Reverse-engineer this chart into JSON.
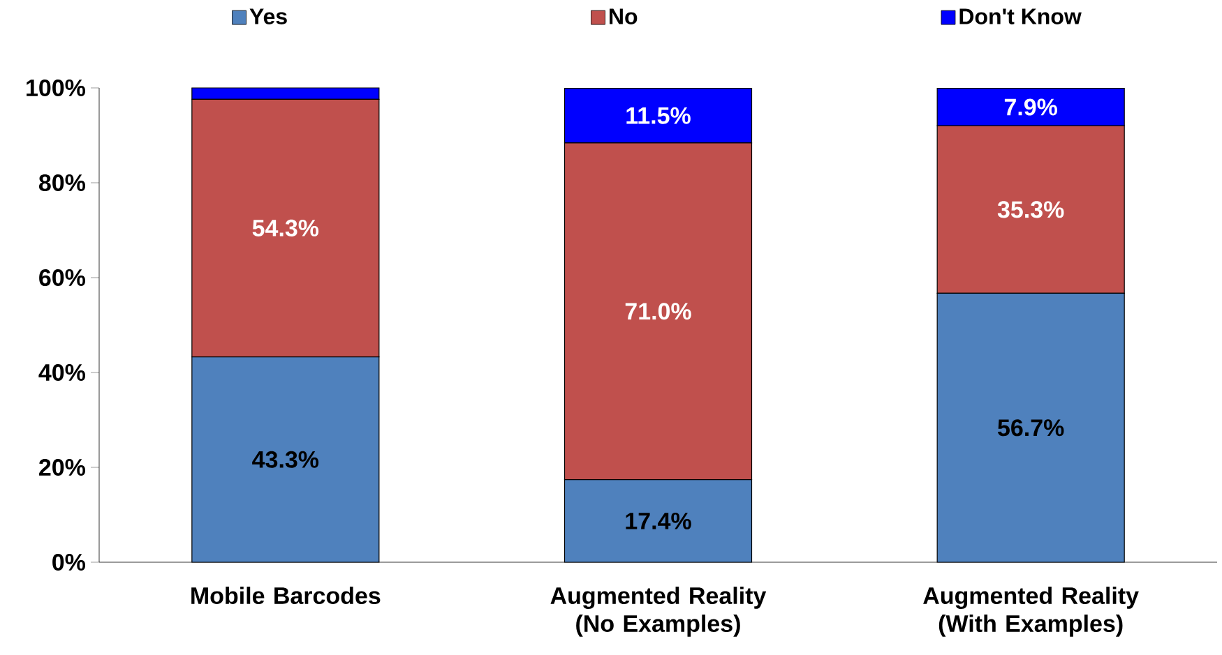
{
  "chart_data": {
    "type": "bar",
    "stacked": true,
    "categories": [
      "Mobile Barcodes",
      "Augmented Reality (No Examples)",
      "Augmented Reality (With Examples)"
    ],
    "series": [
      {
        "name": "Yes",
        "color": "#4f81bd",
        "values": [
          43.3,
          17.4,
          56.7
        ],
        "value_labels": [
          "43.3%",
          "17.4%",
          "56.7%"
        ]
      },
      {
        "name": "No",
        "color": "#c0504d",
        "values": [
          54.3,
          71.0,
          35.3
        ],
        "value_labels": [
          "54.3%",
          "71.0%",
          "35.3%"
        ]
      },
      {
        "name": "Don't Know",
        "color": "#0000ff",
        "values": [
          2.4,
          11.5,
          7.9
        ],
        "value_labels": [
          null,
          "11.5%",
          "7.9%"
        ]
      }
    ],
    "ylim": [
      0,
      100
    ],
    "yticks": [
      {
        "value": 0,
        "label": "0%"
      },
      {
        "value": 20,
        "label": "20%"
      },
      {
        "value": 40,
        "label": "40%"
      },
      {
        "value": 60,
        "label": "60%"
      },
      {
        "value": 80,
        "label": "80%"
      },
      {
        "value": 100,
        "label": "100%"
      }
    ],
    "grid": false,
    "legend": "top"
  }
}
